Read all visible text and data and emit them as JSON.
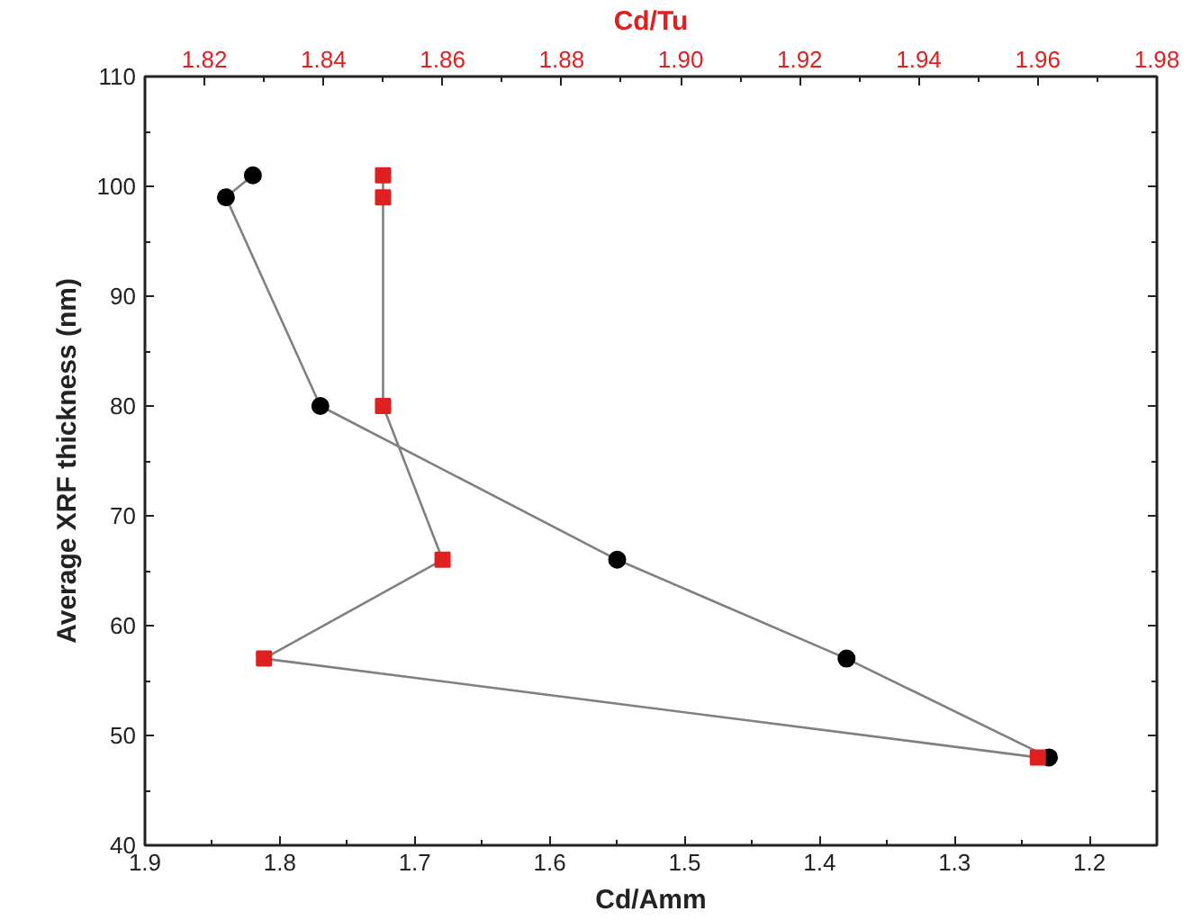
{
  "chart_data": {
    "type": "line",
    "xlabel": "Cd/Amm",
    "x2label": "Cd/Tu",
    "ylabel": "Average XRF thickness (nm)",
    "xlim": [
      1.9,
      1.15
    ],
    "xticks": [
      {
        "value": 1.9,
        "label": "1.9"
      },
      {
        "value": 1.8,
        "label": "1.8"
      },
      {
        "value": 1.7,
        "label": "1.7"
      },
      {
        "value": 1.6,
        "label": "1.6"
      },
      {
        "value": 1.5,
        "label": "1.5"
      },
      {
        "value": 1.4,
        "label": "1.4"
      },
      {
        "value": 1.3,
        "label": "1.3"
      },
      {
        "value": 1.2,
        "label": "1.2"
      }
    ],
    "x2lim": [
      1.81,
      1.98
    ],
    "x2ticks": [
      1.82,
      1.84,
      1.86,
      1.88,
      {
        "value": 1.9,
        "label": "1.90"
      },
      1.92,
      1.94,
      1.96,
      1.98
    ],
    "ylim": [
      40,
      110
    ],
    "yticks": [
      40,
      50,
      60,
      70,
      80,
      90,
      100,
      110
    ],
    "grid": false,
    "line_style": "solid",
    "series": [
      {
        "color": "#000000",
        "marker": "circle",
        "x": [
          1.82,
          1.84,
          1.77,
          1.55,
          1.38,
          1.23
        ],
        "values": [
          101,
          99,
          80,
          66,
          57,
          48
        ]
      },
      {
        "color": "#e02020",
        "marker": "square",
        "axis": "x2",
        "x": [
          1.85,
          1.85,
          1.85,
          1.86,
          1.83,
          1.96
        ],
        "values": [
          101,
          99,
          80,
          66,
          57,
          48
        ]
      }
    ]
  }
}
